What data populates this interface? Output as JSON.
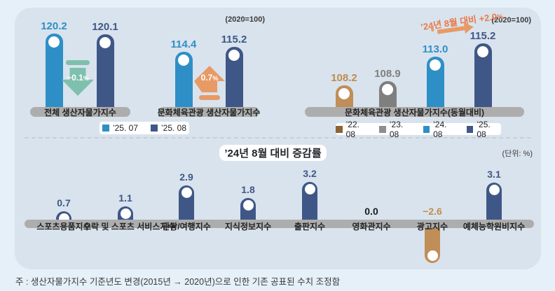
{
  "notes": {
    "scale_1": "(2020=100)",
    "scale_2": "(2020=100)",
    "unit": "(단위: %)"
  },
  "annotation": {
    "text": "’24년 8월 대비 +2.0",
    "unit": "%"
  },
  "bottom_title": "’24년 8월 대비 증감률",
  "footnote": "주 : 생산자물가지수 기준년도 변경(2015년 → 2020년)으로 인한 기존 공표된 수치 조정함",
  "colors": {
    "blue": "#2E8FC6",
    "navy": "#3F5787",
    "tan": "#C08E58",
    "tan_text": "#BF8C4E",
    "gray": "#7F7F7F",
    "brown": "#8A6434",
    "legendgray": "#8E8E8E",
    "teal": "#7EC0AD",
    "orange": "#E79A66",
    "orange_text": "#E8794A",
    "zero_text": "#1a1a1a",
    "baseline": "#ADADAD"
  },
  "legends": [
    {
      "items": [
        {
          "label": "’25. 07",
          "color": "blue"
        },
        {
          "label": "’25. 08",
          "color": "navy"
        }
      ]
    },
    {
      "items": [
        {
          "label": "’22. 08",
          "color": "brown"
        },
        {
          "label": "’23. 08",
          "color": "legendgray"
        },
        {
          "label": "’24. 08",
          "color": "blue"
        },
        {
          "label": "’25. 08",
          "color": "navy"
        }
      ]
    }
  ],
  "chart_data": [
    {
      "type": "bar",
      "title": "전체 생산자물가지수",
      "note": "(2020=100)",
      "categories": [
        "’25. 07",
        "’25. 08"
      ],
      "values": [
        120.2,
        120.1
      ],
      "colors": [
        "blue",
        "navy"
      ],
      "change": {
        "text": "−0.1",
        "unit": "%",
        "direction": "down"
      }
    },
    {
      "type": "bar",
      "title": "문화체육관광 생산자물가지수",
      "note": "(2020=100)",
      "categories": [
        "’25. 07",
        "’25. 08"
      ],
      "values": [
        114.4,
        115.2
      ],
      "colors": [
        "blue",
        "navy"
      ],
      "change": {
        "text": "0.7",
        "unit": "%",
        "direction": "up"
      }
    },
    {
      "type": "bar",
      "title": "문화체육관광 생산자물가지수(동월대비)",
      "note": "(2020=100)",
      "categories": [
        "’22. 08",
        "’23. 08",
        "’24. 08",
        "’25. 08"
      ],
      "values": [
        108.2,
        108.9,
        113.0,
        115.2
      ],
      "colors": [
        "tan",
        "gray",
        "blue",
        "navy"
      ],
      "annotation": "’24년 8월 대비 +2.0%"
    },
    {
      "type": "bar",
      "title": "’24년 8월 대비 증감률",
      "unit": "(단위: %)",
      "categories": [
        "스포츠용품지수",
        "오락 및 스포츠 서비스지수",
        "관광/여행지수",
        "지식정보지수",
        "출판지수",
        "영화관지수",
        "광고지수",
        "예체능학원비지수"
      ],
      "values": [
        0.7,
        1.1,
        2.9,
        1.8,
        3.2,
        0.0,
        -2.6,
        3.1
      ]
    }
  ]
}
